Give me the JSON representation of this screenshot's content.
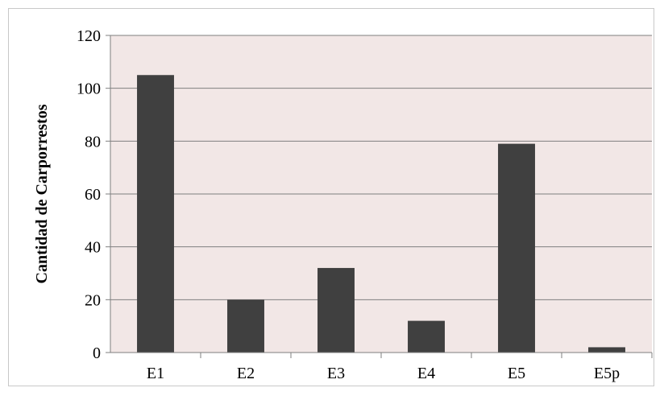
{
  "chart_data": {
    "type": "bar",
    "title": "",
    "xlabel": "",
    "ylabel": "Cantidad de Carporrestos",
    "categories": [
      "E1",
      "E2",
      "E3",
      "E4",
      "E5",
      "E5p"
    ],
    "values": [
      105,
      20,
      32,
      12,
      79,
      2
    ],
    "ylim": [
      0,
      120
    ],
    "yticks": [
      0,
      20,
      40,
      60,
      80,
      100,
      120
    ],
    "grid": true,
    "legend": "none",
    "colors": {
      "bar": "#404040",
      "plot_background": "#f2e7e6",
      "gridline": "#7f7f7f",
      "axis": "#7f7f7f"
    }
  }
}
